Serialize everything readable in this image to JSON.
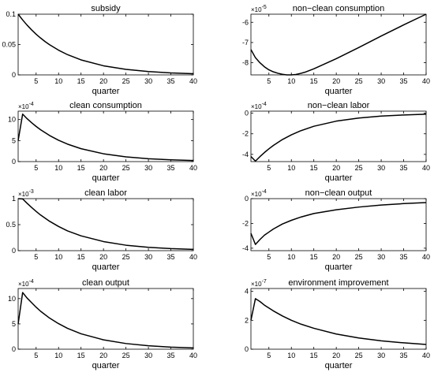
{
  "chart_data": [
    {
      "type": "line",
      "title": "subsidy",
      "xlabel": "quarter",
      "ylabel": "",
      "xlim": [
        1,
        40
      ],
      "ylim": [
        0,
        0.1
      ],
      "xticks": [
        5,
        10,
        15,
        20,
        25,
        30,
        35,
        40
      ],
      "yticks": [
        0,
        0.05,
        0.1
      ],
      "yticklabels": [
        "0",
        "0.05",
        "0.1"
      ],
      "exponent": "",
      "x": [
        1,
        2,
        3,
        4,
        5,
        6,
        7,
        8,
        10,
        12,
        15,
        20,
        25,
        30,
        35,
        40
      ],
      "y": [
        0.1,
        0.0905,
        0.0819,
        0.0741,
        0.067,
        0.0607,
        0.0549,
        0.0497,
        0.0407,
        0.0333,
        0.0247,
        0.015,
        0.0091,
        0.0055,
        0.0033,
        0.002
      ]
    },
    {
      "type": "line",
      "title": "non−clean consumption",
      "xlabel": "quarter",
      "ylabel": "",
      "xlim": [
        1,
        40
      ],
      "ylim": [
        -8.6,
        -5.6
      ],
      "xticks": [
        5,
        10,
        15,
        20,
        25,
        30,
        35,
        40
      ],
      "yticks": [
        -8,
        -7,
        -6
      ],
      "yticklabels": [
        "-8",
        "-7",
        "-6"
      ],
      "exponent": "10",
      "exponent_power": "-5",
      "x": [
        1,
        2,
        3,
        4,
        5,
        6,
        7,
        8,
        9,
        10,
        11,
        12,
        13,
        15,
        20,
        25,
        30,
        35,
        40
      ],
      "y": [
        -7.35,
        -7.75,
        -8.0,
        -8.2,
        -8.35,
        -8.45,
        -8.52,
        -8.57,
        -8.6,
        -8.6,
        -8.58,
        -8.53,
        -8.47,
        -8.3,
        -7.8,
        -7.25,
        -6.68,
        -6.13,
        -5.6
      ]
    },
    {
      "type": "line",
      "title": "clean consumption",
      "xlabel": "quarter",
      "ylabel": "",
      "xlim": [
        1,
        40
      ],
      "ylim": [
        0,
        12
      ],
      "xticks": [
        5,
        10,
        15,
        20,
        25,
        30,
        35,
        40
      ],
      "yticks": [
        0,
        5,
        10
      ],
      "yticklabels": [
        "0",
        "5",
        "10"
      ],
      "exponent": "10",
      "exponent_power": "-4",
      "x": [
        1,
        2,
        3,
        4,
        5,
        6,
        8,
        10,
        12,
        15,
        20,
        25,
        30,
        35,
        40
      ],
      "y": [
        5.0,
        11.3,
        10.2,
        9.25,
        8.37,
        7.57,
        6.2,
        5.07,
        4.15,
        3.07,
        1.86,
        1.13,
        0.68,
        0.41,
        0.25
      ]
    },
    {
      "type": "line",
      "title": "non−clean labor",
      "xlabel": "quarter",
      "ylabel": "",
      "xlim": [
        1,
        40
      ],
      "ylim": [
        -4.7,
        0.2
      ],
      "xticks": [
        5,
        10,
        15,
        20,
        25,
        30,
        35,
        40
      ],
      "yticks": [
        -4,
        -2,
        0
      ],
      "yticklabels": [
        "-4",
        "-2",
        "0"
      ],
      "exponent": "10",
      "exponent_power": "-4",
      "x": [
        1,
        2,
        3,
        4,
        5,
        6,
        8,
        10,
        12,
        15,
        20,
        25,
        30,
        35,
        40
      ],
      "y": [
        -4.2,
        -4.65,
        -4.22,
        -3.82,
        -3.46,
        -3.13,
        -2.56,
        -2.1,
        -1.72,
        -1.27,
        -0.77,
        -0.47,
        -0.28,
        -0.17,
        -0.1
      ]
    },
    {
      "type": "line",
      "title": "clean labor",
      "xlabel": "quarter",
      "ylabel": "",
      "xlim": [
        1,
        40
      ],
      "ylim": [
        0,
        1
      ],
      "xticks": [
        5,
        10,
        15,
        20,
        25,
        30,
        35,
        40
      ],
      "yticks": [
        0,
        0.5,
        1
      ],
      "yticklabels": [
        "0",
        "0.5",
        "1"
      ],
      "exponent": "10",
      "exponent_power": "-3",
      "x": [
        1,
        2,
        3,
        4,
        5,
        6,
        8,
        10,
        12,
        15,
        20,
        25,
        30,
        35,
        40
      ],
      "y": [
        1.0,
        0.995,
        0.91,
        0.83,
        0.755,
        0.685,
        0.565,
        0.465,
        0.38,
        0.285,
        0.175,
        0.105,
        0.065,
        0.04,
        0.025
      ]
    },
    {
      "type": "line",
      "title": "non−clean output",
      "xlabel": "quarter",
      "ylabel": "",
      "xlim": [
        1,
        40
      ],
      "ylim": [
        -4.2,
        0
      ],
      "xticks": [
        5,
        10,
        15,
        20,
        25,
        30,
        35,
        40
      ],
      "yticks": [
        -4,
        -2,
        0
      ],
      "yticklabels": [
        "-4",
        "-2",
        "0"
      ],
      "exponent": "10",
      "exponent_power": "-4",
      "x": [
        1,
        2,
        3,
        4,
        5,
        6,
        8,
        10,
        12,
        15,
        20,
        25,
        30,
        35,
        40
      ],
      "y": [
        -2.8,
        -3.7,
        -3.3,
        -2.95,
        -2.7,
        -2.45,
        -2.05,
        -1.75,
        -1.5,
        -1.2,
        -0.9,
        -0.68,
        -0.52,
        -0.4,
        -0.32
      ]
    },
    {
      "type": "line",
      "title": "clean output",
      "xlabel": "quarter",
      "ylabel": "",
      "xlim": [
        1,
        40
      ],
      "ylim": [
        0,
        12
      ],
      "xticks": [
        5,
        10,
        15,
        20,
        25,
        30,
        35,
        40
      ],
      "yticks": [
        0,
        5,
        10
      ],
      "yticklabels": [
        "0",
        "5",
        "10"
      ],
      "exponent": "10",
      "exponent_power": "-4",
      "x": [
        1,
        2,
        3,
        4,
        5,
        6,
        8,
        10,
        12,
        15,
        20,
        25,
        30,
        35,
        40
      ],
      "y": [
        5.0,
        11.2,
        10.1,
        9.2,
        8.3,
        7.5,
        6.15,
        5.05,
        4.12,
        3.05,
        1.85,
        1.12,
        0.68,
        0.41,
        0.25
      ]
    },
    {
      "type": "line",
      "title": "environment improvement",
      "xlabel": "quarter",
      "ylabel": "",
      "xlim": [
        1,
        40
      ],
      "ylim": [
        0,
        4.2
      ],
      "xticks": [
        5,
        10,
        15,
        20,
        25,
        30,
        35,
        40
      ],
      "yticks": [
        0,
        2,
        4
      ],
      "yticklabels": [
        "0",
        "2",
        "4"
      ],
      "exponent": "10",
      "exponent_power": "-7",
      "x": [
        1,
        2,
        3,
        4,
        5,
        6,
        8,
        10,
        12,
        15,
        20,
        25,
        30,
        35,
        40
      ],
      "y": [
        2.0,
        3.5,
        3.3,
        3.05,
        2.85,
        2.65,
        2.3,
        2.0,
        1.75,
        1.45,
        1.05,
        0.78,
        0.58,
        0.44,
        0.33
      ]
    }
  ]
}
